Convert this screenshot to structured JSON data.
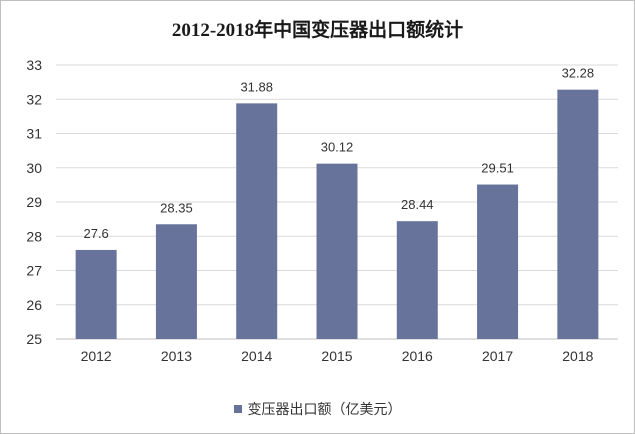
{
  "colors": {
    "bar": "#68739c",
    "grid": "#d9d9d9",
    "axis": "#bfbfbf",
    "text": "#333333"
  },
  "chart_data": {
    "type": "bar",
    "title": "2012-2018年中国变压器出口额统计",
    "categories": [
      "2012",
      "2013",
      "2014",
      "2015",
      "2016",
      "2017",
      "2018"
    ],
    "series": [
      {
        "name": "变压器出口额（亿美元）",
        "values": [
          27.6,
          28.35,
          31.88,
          30.12,
          28.44,
          29.51,
          32.28
        ]
      }
    ],
    "data_labels": [
      "27.6",
      "28.35",
      "31.88",
      "30.12",
      "28.44",
      "29.51",
      "32.28"
    ],
    "yticks": [
      25,
      26,
      27,
      28,
      29,
      30,
      31,
      32,
      33
    ],
    "ylim": [
      25,
      33
    ],
    "xlabel": "",
    "ylabel": "",
    "grid": true,
    "legend_position": "bottom"
  }
}
